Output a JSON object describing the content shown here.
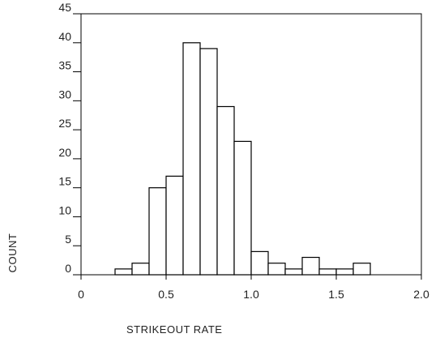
{
  "chart_data": {
    "type": "bar",
    "subtype": "histogram",
    "xlabel": "STRIKEOUT RATE",
    "ylabel": "COUNT",
    "xlim": [
      0,
      2.0
    ],
    "ylim": [
      0,
      45
    ],
    "x_ticks": [
      "0",
      "0.5",
      "1.0",
      "1.5",
      "2.0"
    ],
    "x_tick_values": [
      0,
      0.5,
      1.0,
      1.5,
      2.0
    ],
    "y_ticks": [
      "0",
      "5",
      "10",
      "15",
      "20",
      "25",
      "30",
      "35",
      "40",
      "45"
    ],
    "y_tick_values": [
      0,
      5,
      10,
      15,
      20,
      25,
      30,
      35,
      40,
      45
    ],
    "bin_width": 0.1,
    "bins": [
      {
        "start": 0.2,
        "end": 0.3,
        "count": 1
      },
      {
        "start": 0.3,
        "end": 0.4,
        "count": 2
      },
      {
        "start": 0.4,
        "end": 0.5,
        "count": 15
      },
      {
        "start": 0.5,
        "end": 0.6,
        "count": 17
      },
      {
        "start": 0.6,
        "end": 0.7,
        "count": 40
      },
      {
        "start": 0.7,
        "end": 0.8,
        "count": 39
      },
      {
        "start": 0.8,
        "end": 0.9,
        "count": 29
      },
      {
        "start": 0.9,
        "end": 1.0,
        "count": 23
      },
      {
        "start": 1.0,
        "end": 1.1,
        "count": 4
      },
      {
        "start": 1.1,
        "end": 1.2,
        "count": 2
      },
      {
        "start": 1.2,
        "end": 1.3,
        "count": 1
      },
      {
        "start": 1.3,
        "end": 1.4,
        "count": 3
      },
      {
        "start": 1.4,
        "end": 1.5,
        "count": 1
      },
      {
        "start": 1.5,
        "end": 1.6,
        "count": 1
      },
      {
        "start": 1.6,
        "end": 1.7,
        "count": 2
      }
    ],
    "grid": false,
    "legend": "none",
    "bar_fill": "#ffffff",
    "bar_stroke": "#000000"
  }
}
